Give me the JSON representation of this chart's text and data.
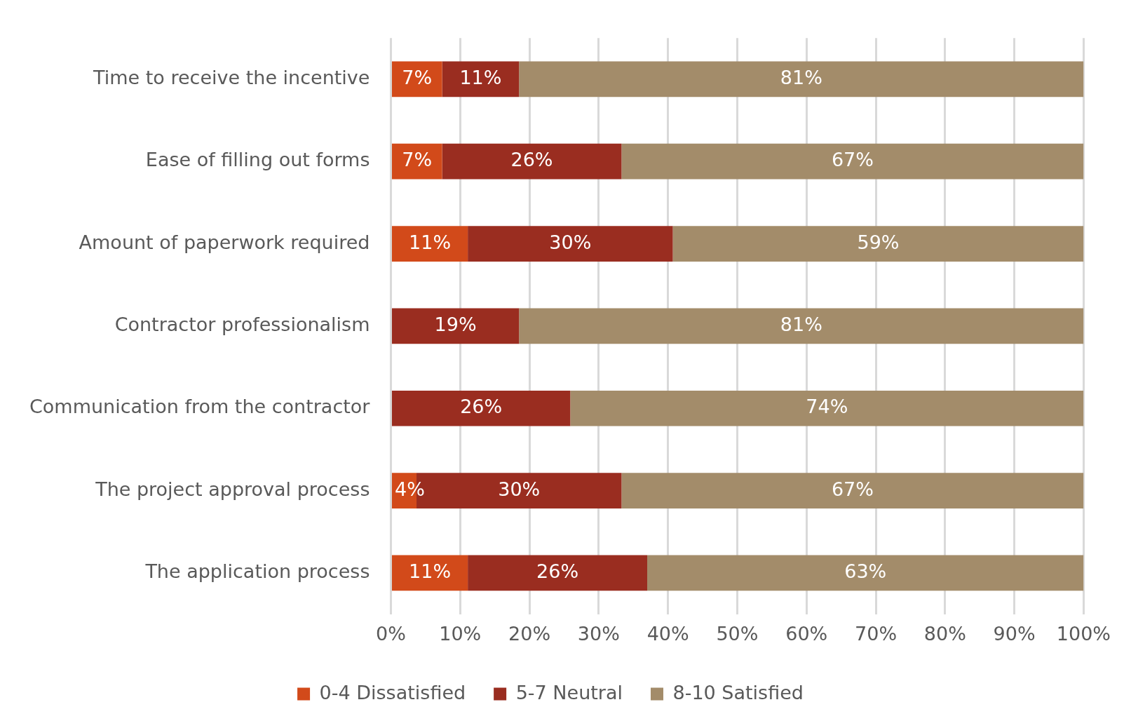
{
  "chart_data": {
    "type": "bar",
    "orientation": "horizontal",
    "stacked": true,
    "categories": [
      "Time to receive the incentive",
      "Ease of filling out forms",
      "Amount of paperwork required",
      "Contractor professionalism",
      "Communication from the contractor",
      "The project approval process",
      "The application process"
    ],
    "series": [
      {
        "name": "0-4 Dissatisfied",
        "color": "#d24a1a",
        "values": [
          7.4,
          7.4,
          11.1,
          0,
          0,
          3.7,
          11.1
        ],
        "value_labels": [
          "7%",
          "7%",
          "11%",
          null,
          null,
          "4%",
          "11%"
        ]
      },
      {
        "name": "5-7 Neutral",
        "color": "#9a2d20",
        "values": [
          11.1,
          25.9,
          29.6,
          18.5,
          25.9,
          29.6,
          25.9
        ],
        "value_labels": [
          "11%",
          "26%",
          "30%",
          "19%",
          "26%",
          "30%",
          "26%"
        ]
      },
      {
        "name": "8-10 Satisfied",
        "color": "#a38c6a",
        "values": [
          81.5,
          66.7,
          59.3,
          81.5,
          74.1,
          66.7,
          63.0
        ],
        "value_labels": [
          "81%",
          "67%",
          "59%",
          "81%",
          "74%",
          "67%",
          "63%"
        ]
      }
    ],
    "xlim": [
      0,
      100
    ],
    "xticks": [
      {
        "value": 0,
        "label": "0%"
      },
      {
        "value": 10,
        "label": "10%"
      },
      {
        "value": 20,
        "label": "20%"
      },
      {
        "value": 30,
        "label": "30%"
      },
      {
        "value": 40,
        "label": "40%"
      },
      {
        "value": 50,
        "label": "50%"
      },
      {
        "value": 60,
        "label": "60%"
      },
      {
        "value": 70,
        "label": "70%"
      },
      {
        "value": 80,
        "label": "80%"
      },
      {
        "value": 90,
        "label": "90%"
      },
      {
        "value": 100,
        "label": "100%"
      }
    ],
    "grid": "x",
    "legend": "bottom"
  }
}
